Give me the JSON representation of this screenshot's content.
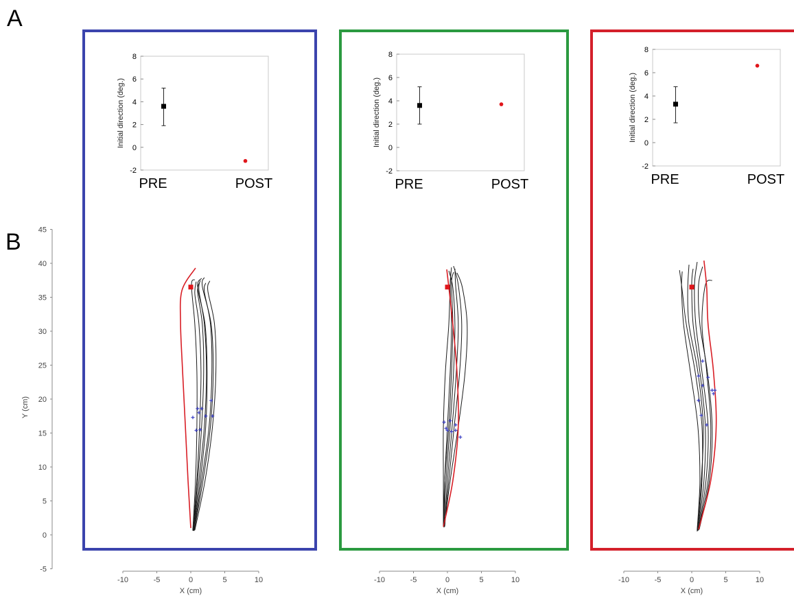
{
  "panel_labels": {
    "a": "A",
    "b": "B"
  },
  "colors": {
    "panel_frames": [
      "#3b44ad",
      "#2b9a40",
      "#d4202b"
    ],
    "pre_marker": "#000000",
    "post_marker": "#e0161b",
    "baseline_traces": "#1a1a1a",
    "test_trace": "#d81e25",
    "peak_velocity_markers": "#3a3fc4"
  },
  "chart_data": [
    {
      "type": "scatter",
      "panel": "A-1",
      "ylabel": "Initial direction (deg.)",
      "categories": [
        "PRE",
        "POST"
      ],
      "ylim": [
        -2,
        8
      ],
      "yticks": [
        -2,
        0,
        2,
        4,
        6,
        8
      ],
      "pre": {
        "mean": 3.6,
        "err_low": 1.9,
        "err_high": 5.2
      },
      "post": {
        "value": -1.2
      }
    },
    {
      "type": "scatter",
      "panel": "A-2",
      "ylabel": "Initial direction (deg.)",
      "categories": [
        "PRE",
        "POST"
      ],
      "ylim": [
        -2,
        8
      ],
      "yticks": [
        -2,
        0,
        2,
        4,
        6,
        8
      ],
      "pre": {
        "mean": 3.6,
        "err_low": 2.0,
        "err_high": 5.2
      },
      "post": {
        "value": 3.7
      }
    },
    {
      "type": "scatter",
      "panel": "A-3",
      "ylabel": "Initial direction (deg.)",
      "categories": [
        "PRE",
        "POST"
      ],
      "ylim": [
        -2,
        8
      ],
      "yticks": [
        -2,
        0,
        2,
        4,
        6,
        8
      ],
      "pre": {
        "mean": 3.3,
        "err_low": 1.7,
        "err_high": 4.8
      },
      "post": {
        "value": 6.6
      }
    },
    {
      "type": "line",
      "panel": "B",
      "ylabel": "Y (cm)",
      "ylim": [
        -5,
        45
      ],
      "yticks": [
        -5,
        0,
        5,
        10,
        15,
        20,
        25,
        30,
        35,
        40,
        45
      ],
      "xlabel": "X (cm)",
      "xlim": [
        -10,
        10
      ],
      "xticks": [
        -10,
        -5,
        0,
        5,
        10
      ],
      "subplots": [
        {
          "target": [
            0.0,
            36.5
          ],
          "black_traces": [
            [
              [
                0.3,
                0.6
              ],
              [
                0.9,
                8
              ],
              [
                1.3,
                16
              ],
              [
                1.5,
                24
              ],
              [
                1.2,
                31
              ],
              [
                0.6,
                35.5
              ],
              [
                0.8,
                37.3
              ]
            ],
            [
              [
                0.4,
                0.6
              ],
              [
                1.2,
                8
              ],
              [
                2.0,
                16
              ],
              [
                2.3,
                24
              ],
              [
                2.0,
                31
              ],
              [
                1.2,
                36
              ],
              [
                1.4,
                37.5
              ]
            ],
            [
              [
                0.5,
                0.7
              ],
              [
                1.6,
                8
              ],
              [
                2.7,
                16
              ],
              [
                3.1,
                24
              ],
              [
                2.9,
                31
              ],
              [
                2.0,
                35.8
              ],
              [
                2.2,
                37.1
              ]
            ],
            [
              [
                0.4,
                0.6
              ],
              [
                1.4,
                8
              ],
              [
                2.2,
                16
              ],
              [
                2.4,
                24
              ],
              [
                2.1,
                31
              ],
              [
                1.0,
                36.5
              ],
              [
                1.6,
                37.8
              ]
            ],
            [
              [
                0.6,
                0.7
              ],
              [
                2.1,
                8
              ],
              [
                3.2,
                16
              ],
              [
                3.7,
                24
              ],
              [
                3.5,
                31
              ],
              [
                2.5,
                36
              ],
              [
                2.8,
                37.4
              ]
            ],
            [
              [
                0.3,
                0.7
              ],
              [
                0.7,
                8
              ],
              [
                0.9,
                16
              ],
              [
                0.9,
                24
              ],
              [
                0.6,
                31
              ],
              [
                0.1,
                36.8
              ],
              [
                0.6,
                37.6
              ]
            ],
            [
              [
                0.5,
                0.6
              ],
              [
                1.8,
                8
              ],
              [
                2.9,
                16
              ],
              [
                3.3,
                24
              ],
              [
                3.0,
                31
              ],
              [
                1.7,
                36.6
              ],
              [
                2.0,
                37.9
              ]
            ],
            [
              [
                0.4,
                0.6
              ],
              [
                1.0,
                8
              ],
              [
                1.6,
                16
              ],
              [
                1.9,
                24
              ],
              [
                1.7,
                31
              ],
              [
                1.0,
                35.8
              ],
              [
                1.3,
                37.2
              ]
            ]
          ],
          "red_trace": [
            [
              0.0,
              1.0
            ],
            [
              -0.4,
              8
            ],
            [
              -0.8,
              16
            ],
            [
              -1.2,
              24
            ],
            [
              -1.5,
              31
            ],
            [
              -1.3,
              36
            ],
            [
              0.7,
              39.3
            ]
          ],
          "peak_velocity_points": [
            [
              0.3,
              17.3
            ],
            [
              1.0,
              18.6
            ],
            [
              1.6,
              18.6
            ],
            [
              1.2,
              18.0
            ],
            [
              2.2,
              17.5
            ],
            [
              3.0,
              19.8
            ],
            [
              3.2,
              17.5
            ],
            [
              0.8,
              15.4
            ],
            [
              1.4,
              15.5
            ]
          ]
        },
        {
          "target": [
            0.0,
            36.5
          ],
          "black_traces": [
            [
              [
                -0.5,
                1.2
              ],
              [
                -0.4,
                8
              ],
              [
                0.0,
                16
              ],
              [
                0.4,
                24
              ],
              [
                0.6,
                31
              ],
              [
                0.4,
                36.5
              ],
              [
                0.6,
                39.4
              ]
            ],
            [
              [
                -0.4,
                1.2
              ],
              [
                0.0,
                8
              ],
              [
                0.7,
                16
              ],
              [
                1.3,
                24
              ],
              [
                1.6,
                31
              ],
              [
                1.2,
                36.8
              ],
              [
                1.1,
                39.2
              ]
            ],
            [
              [
                -0.5,
                1.1
              ],
              [
                0.4,
                8
              ],
              [
                1.6,
                16
              ],
              [
                2.6,
                24
              ],
              [
                2.9,
                31
              ],
              [
                2.2,
                36.4
              ],
              [
                1.4,
                38.6
              ]
            ],
            [
              [
                -0.6,
                1.2
              ],
              [
                -0.6,
                8
              ],
              [
                -0.6,
                16
              ],
              [
                -0.3,
                24
              ],
              [
                0.2,
                31
              ],
              [
                0.4,
                36.8
              ],
              [
                0.5,
                38.8
              ]
            ],
            [
              [
                -0.4,
                1.3
              ],
              [
                0.2,
                8
              ],
              [
                1.0,
                16
              ],
              [
                1.8,
                24
              ],
              [
                2.1,
                31
              ],
              [
                1.6,
                36.8
              ],
              [
                0.9,
                39.6
              ]
            ],
            [
              [
                -0.5,
                1.1
              ],
              [
                -0.2,
                8
              ],
              [
                0.4,
                16
              ],
              [
                0.9,
                24
              ],
              [
                1.1,
                31
              ],
              [
                0.8,
                36.4
              ],
              [
                0.2,
                38.9
              ]
            ],
            [
              [
                -0.6,
                1.2
              ],
              [
                -0.4,
                8
              ],
              [
                0.2,
                16
              ],
              [
                0.6,
                24
              ],
              [
                0.8,
                31
              ],
              [
                0.6,
                37
              ],
              [
                0.9,
                38.7
              ]
            ]
          ],
          "red_trace": [
            [
              -0.6,
              1.2
            ],
            [
              0.8,
              8
            ],
            [
              1.6,
              16
            ],
            [
              1.4,
              24
            ],
            [
              0.8,
              31
            ],
            [
              0.2,
              36.5
            ],
            [
              -0.1,
              39.1
            ]
          ],
          "peak_velocity_points": [
            [
              -0.5,
              16.6
            ],
            [
              0.4,
              16.8
            ],
            [
              1.2,
              16.2
            ],
            [
              1.9,
              14.4
            ],
            [
              0.6,
              15.2
            ],
            [
              0.0,
              15.4
            ],
            [
              -0.2,
              15.7
            ],
            [
              1.2,
              15.4
            ]
          ]
        },
        {
          "target": [
            0.0,
            36.5
          ],
          "black_traces": [
            [
              [
                0.9,
                0.6
              ],
              [
                1.5,
                8
              ],
              [
                1.5,
                16
              ],
              [
                0.5,
                24
              ],
              [
                -0.8,
                31
              ],
              [
                -1.4,
                36
              ],
              [
                -1.8,
                39
              ]
            ],
            [
              [
                0.8,
                0.7
              ],
              [
                1.2,
                8
              ],
              [
                0.9,
                16
              ],
              [
                -0.2,
                24
              ],
              [
                -1.2,
                31
              ],
              [
                -1.5,
                36.4
              ],
              [
                -1.4,
                38.8
              ]
            ],
            [
              [
                1.0,
                0.8
              ],
              [
                2.1,
                8
              ],
              [
                2.4,
                16
              ],
              [
                1.5,
                24
              ],
              [
                0.6,
                31
              ],
              [
                0.4,
                36.8
              ],
              [
                0.8,
                40.2
              ]
            ],
            [
              [
                0.9,
                0.6
              ],
              [
                1.8,
                8
              ],
              [
                2.0,
                16
              ],
              [
                1.2,
                24
              ],
              [
                0.2,
                31
              ],
              [
                0.0,
                37
              ],
              [
                0.2,
                39.2
              ]
            ],
            [
              [
                1.1,
                0.8
              ],
              [
                2.6,
                8
              ],
              [
                3.0,
                16
              ],
              [
                2.3,
                24
              ],
              [
                1.2,
                31
              ],
              [
                1.0,
                36.8
              ],
              [
                1.6,
                39.5
              ]
            ],
            [
              [
                0.8,
                0.5
              ],
              [
                1.4,
                8
              ],
              [
                1.7,
                16
              ],
              [
                0.9,
                24
              ],
              [
                -0.4,
                31
              ],
              [
                -0.6,
                36
              ],
              [
                -0.4,
                39.8
              ]
            ],
            [
              [
                1.0,
                0.7
              ],
              [
                2.4,
                8
              ],
              [
                2.8,
                16
              ],
              [
                2.2,
                24
              ],
              [
                1.5,
                31
              ],
              [
                2.0,
                36.8
              ],
              [
                3.0,
                37.5
              ]
            ]
          ],
          "red_trace": [
            [
              1.0,
              0.8
            ],
            [
              2.8,
              8
            ],
            [
              3.6,
              16
            ],
            [
              3.2,
              24
            ],
            [
              2.4,
              31
            ],
            [
              2.2,
              36.4
            ],
            [
              1.8,
              40.4
            ]
          ],
          "peak_velocity_points": [
            [
              1.6,
              25.6
            ],
            [
              1.0,
              23.4
            ],
            [
              2.4,
              23.2
            ],
            [
              1.6,
              22.0
            ],
            [
              3.0,
              21.3
            ],
            [
              3.4,
              21.3
            ],
            [
              3.2,
              20.8
            ],
            [
              1.0,
              19.8
            ],
            [
              1.4,
              17.6
            ],
            [
              2.2,
              16.2
            ]
          ]
        }
      ]
    }
  ]
}
